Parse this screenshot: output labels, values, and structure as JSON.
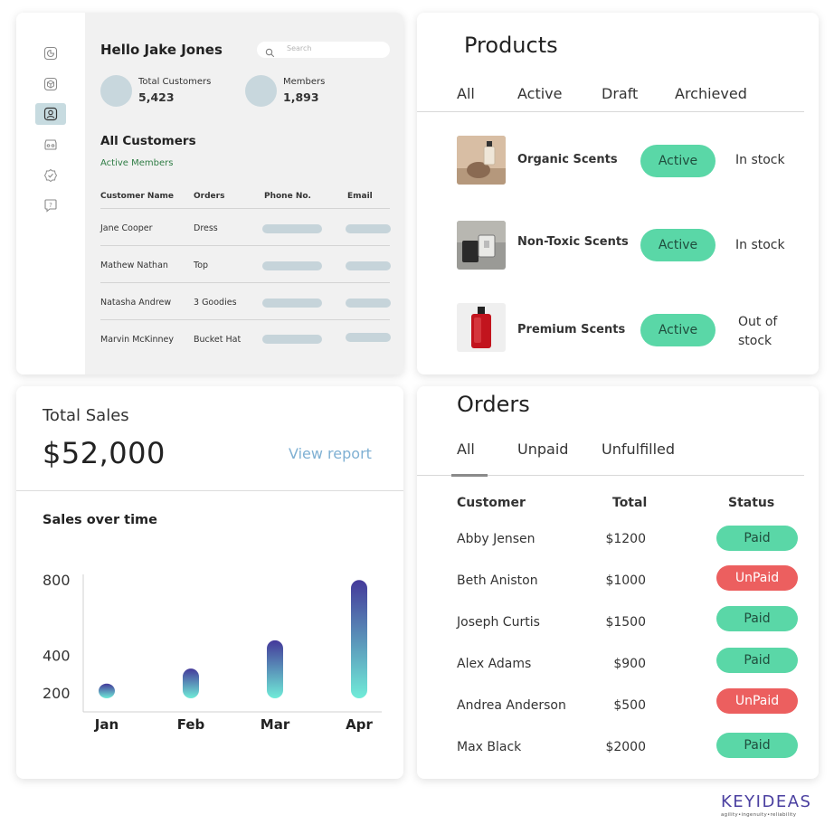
{
  "customers_card": {
    "greeting": "Hello Jake Jones",
    "search_placeholder": "Search",
    "stats": [
      {
        "label": "Total Customers",
        "value": "5,423"
      },
      {
        "label": "Members",
        "value": "1,893"
      }
    ],
    "section_title": "All Customers",
    "section_subtitle": "Active Members",
    "columns": [
      "Customer Name",
      "Orders",
      "Phone No.",
      "Email"
    ],
    "rows": [
      {
        "name": "Jane Cooper",
        "order": "Dress"
      },
      {
        "name": "Mathew Nathan",
        "order": "Top"
      },
      {
        "name": "Natasha Andrew",
        "order": "3 Goodies"
      },
      {
        "name": "Marvin McKinney",
        "order": "Bucket Hat"
      }
    ],
    "sidebar_icons": [
      "pie-chart-icon",
      "cube-icon",
      "user-icon",
      "wallet-icon",
      "badge-icon",
      "help-icon"
    ]
  },
  "products_card": {
    "title": "Products",
    "tabs": [
      "All",
      "Active",
      "Draft",
      "Archieved"
    ],
    "items": [
      {
        "name": "Organic Scents",
        "status": "Active",
        "stock": "In stock"
      },
      {
        "name": "Non-Toxic Scents",
        "status": "Active",
        "stock": "In stock"
      },
      {
        "name": "Premium Scents",
        "status": "Active",
        "stock": "Out of stock"
      }
    ]
  },
  "sales_card": {
    "title": "Total Sales",
    "amount": "$52,000",
    "view_report": "View report",
    "chart_title": "Sales over time"
  },
  "chart_data": {
    "type": "bar",
    "title": "Sales over time",
    "categories": [
      "Jan",
      "Feb",
      "Mar",
      "Apr"
    ],
    "values": [
      250,
      330,
      480,
      800
    ],
    "yticks": [
      800,
      400,
      200
    ],
    "ylim": [
      100,
      830
    ],
    "grid": false,
    "colors": {
      "top": "#44399a",
      "bottom": "#70ecd8"
    }
  },
  "orders_card": {
    "title": "Orders",
    "tabs": [
      "All",
      "Unpaid",
      "Unfulfilled"
    ],
    "columns": [
      "Customer",
      "Total",
      "Status"
    ],
    "rows": [
      {
        "customer": "Abby Jensen",
        "total": "$1200",
        "status": "Paid"
      },
      {
        "customer": "Beth Aniston",
        "total": "$1000",
        "status": "UnPaid"
      },
      {
        "customer": "Joseph Curtis",
        "total": "$1500",
        "status": "Paid"
      },
      {
        "customer": "Alex Adams",
        "total": "$900",
        "status": "Paid"
      },
      {
        "customer": "Andrea Anderson",
        "total": "$500",
        "status": "UnPaid"
      },
      {
        "customer": "Max Black",
        "total": "$2000",
        "status": "Paid"
      }
    ]
  },
  "colors": {
    "paid": "#5ad7a7",
    "unpaid": "#ec5f5f",
    "accent_link": "#7fb0d3",
    "brand": "#4a3fa0"
  },
  "logo": {
    "name": "KEYIDEAS",
    "tagline": "agility•ingenuity•reliability"
  }
}
